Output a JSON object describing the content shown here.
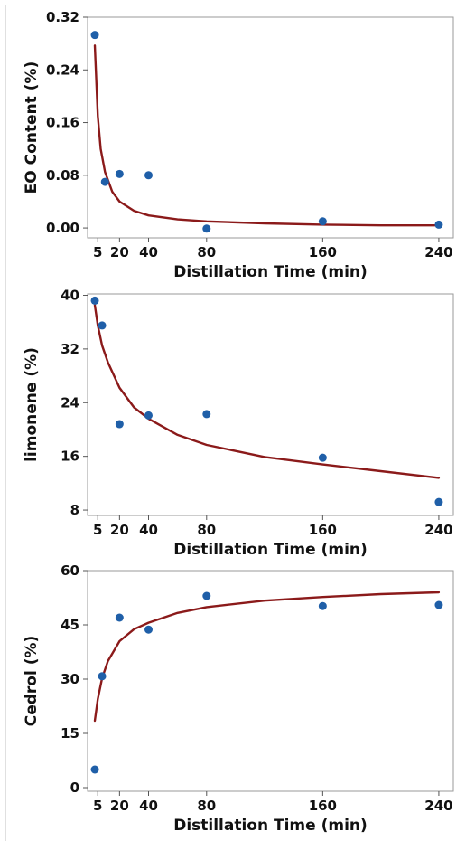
{
  "chart_data": [
    {
      "type": "scatter",
      "title": "",
      "xlabel": "Distillation Time (min)",
      "ylabel": "EO Content (%)",
      "xticks": [
        5,
        20,
        40,
        80,
        160,
        240
      ],
      "yticks": [
        "0.00",
        "0.08",
        "0.16",
        "0.24",
        "0.32"
      ],
      "xlim": [
        -2,
        250
      ],
      "ylim": [
        -0.015,
        0.32
      ],
      "series": [
        {
          "kind": "points",
          "x": [
            3,
            10,
            20,
            40,
            80,
            160,
            240
          ],
          "y": [
            0.293,
            0.07,
            0.082,
            0.08,
            -0.001,
            0.01,
            0.005
          ]
        },
        {
          "kind": "fit",
          "x": [
            3,
            5,
            7,
            10,
            15,
            20,
            30,
            40,
            60,
            80,
            120,
            160,
            200,
            240
          ],
          "y": [
            0.277,
            0.17,
            0.12,
            0.085,
            0.055,
            0.04,
            0.026,
            0.019,
            0.013,
            0.01,
            0.007,
            0.005,
            0.004,
            0.004
          ]
        }
      ],
      "colors": {
        "points": "#1f5fa8",
        "fit": "#8b1a1a"
      },
      "grid": false
    },
    {
      "type": "scatter",
      "title": "",
      "xlabel": "Distillation Time (min)",
      "ylabel": "limonene (%)",
      "xticks": [
        5,
        20,
        40,
        80,
        160,
        240
      ],
      "yticks": [
        "8",
        "16",
        "24",
        "32",
        "40"
      ],
      "xlim": [
        -2,
        250
      ],
      "ylim": [
        7.2,
        40.2
      ],
      "series": [
        {
          "kind": "points",
          "x": [
            3,
            8,
            20,
            40,
            80,
            160,
            240
          ],
          "y": [
            39.2,
            35.5,
            20.8,
            22.1,
            22.3,
            15.8,
            9.2
          ]
        },
        {
          "kind": "fit",
          "x": [
            3,
            5,
            8,
            12,
            20,
            30,
            40,
            60,
            80,
            120,
            160,
            200,
            240
          ],
          "y": [
            38.5,
            35.5,
            32.5,
            30.0,
            26.2,
            23.3,
            21.6,
            19.2,
            17.7,
            15.9,
            14.8,
            13.8,
            12.8
          ]
        }
      ],
      "colors": {
        "points": "#1f5fa8",
        "fit": "#8b1a1a"
      },
      "grid": false
    },
    {
      "type": "scatter",
      "title": "",
      "xlabel": "Distillation Time (min)",
      "ylabel": "Cedrol (%)",
      "xticks": [
        5,
        20,
        40,
        80,
        160,
        240
      ],
      "yticks": [
        "0",
        "15",
        "30",
        "45",
        "60"
      ],
      "xlim": [
        -2,
        250
      ],
      "ylim": [
        -1,
        60
      ],
      "series": [
        {
          "kind": "points",
          "x": [
            3,
            8,
            20,
            40,
            80,
            160,
            240
          ],
          "y": [
            5,
            30.8,
            47,
            43.7,
            53,
            50.2,
            50.5
          ]
        },
        {
          "kind": "fit",
          "x": [
            3,
            5,
            8,
            12,
            20,
            30,
            40,
            60,
            80,
            120,
            160,
            200,
            240
          ],
          "y": [
            18.5,
            24.5,
            30.3,
            35.0,
            40.5,
            43.8,
            45.6,
            48.3,
            49.9,
            51.7,
            52.7,
            53.5,
            54.0
          ]
        }
      ],
      "colors": {
        "points": "#1f5fa8",
        "fit": "#8b1a1a"
      },
      "grid": false
    }
  ]
}
